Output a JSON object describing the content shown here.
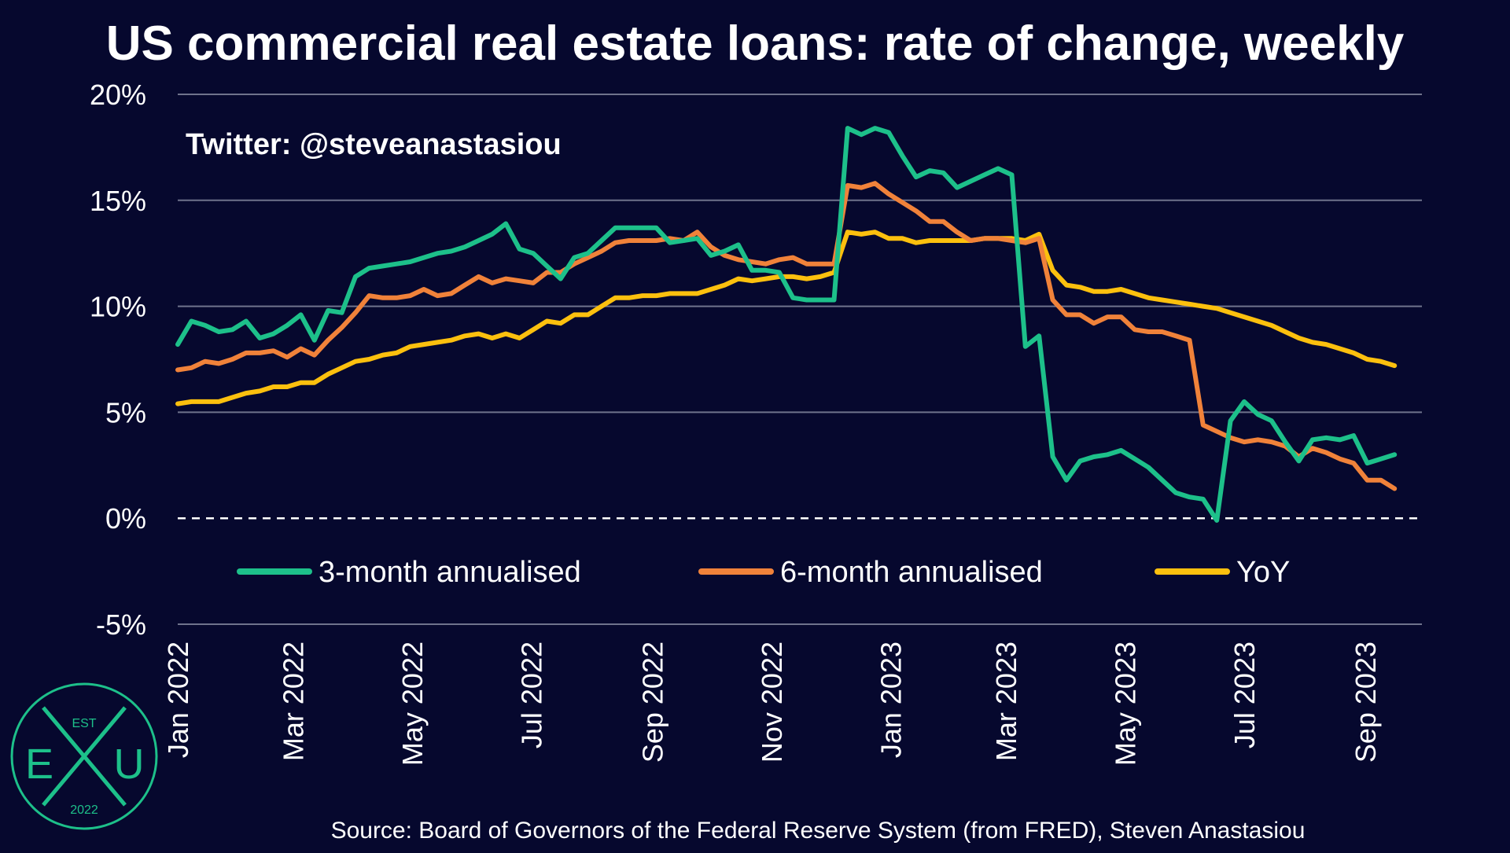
{
  "chart_data": {
    "type": "line",
    "title": "US commercial real estate loans: rate of change, weekly",
    "annotation": "Twitter: @steveanastasiou",
    "source": "Source: Board of Governors of the Federal Reserve System (from FRED), Steven Anastasiou",
    "xlabel": "",
    "ylabel": "",
    "ylim": [
      -5,
      20
    ],
    "y_ticks": [
      -5,
      0,
      5,
      10,
      15,
      20
    ],
    "y_tick_labels": [
      "-5%",
      "0%",
      "5%",
      "10%",
      "15%",
      "20%"
    ],
    "x_range": [
      "2022-01-01",
      "2023-09-30"
    ],
    "x_ticks": [
      "2022-01-01",
      "2022-03-01",
      "2022-05-01",
      "2022-07-01",
      "2022-09-01",
      "2022-11-01",
      "2023-01-01",
      "2023-03-01",
      "2023-05-01",
      "2023-07-01",
      "2023-09-01"
    ],
    "x_tick_labels": [
      "Jan 2022",
      "Mar 2022",
      "May 2022",
      "Jul 2022",
      "Sep 2022",
      "Nov 2022",
      "Jan 2023",
      "Mar 2023",
      "May 2023",
      "Jul 2023",
      "Sep 2023"
    ],
    "grid": true,
    "zero_line": "dashed",
    "legend_position": "middle",
    "colors": {
      "background": "#06082e",
      "grid": "#6f738c",
      "3m": "#1dc08a",
      "6m": "#f0823a",
      "yoy": "#fcc00e"
    },
    "series": [
      {
        "name": "3-month annualised",
        "color": "#1dc08a",
        "points": [
          [
            "2022-01-01",
            8.2
          ],
          [
            "2022-01-08",
            9.3
          ],
          [
            "2022-01-15",
            9.1
          ],
          [
            "2022-01-22",
            8.8
          ],
          [
            "2022-01-29",
            8.9
          ],
          [
            "2022-02-05",
            9.3
          ],
          [
            "2022-02-12",
            8.5
          ],
          [
            "2022-02-19",
            8.7
          ],
          [
            "2022-02-26",
            9.1
          ],
          [
            "2022-03-05",
            9.6
          ],
          [
            "2022-03-12",
            8.4
          ],
          [
            "2022-03-19",
            9.8
          ],
          [
            "2022-03-26",
            9.7
          ],
          [
            "2022-04-02",
            11.4
          ],
          [
            "2022-04-09",
            11.8
          ],
          [
            "2022-04-16",
            11.9
          ],
          [
            "2022-04-23",
            12.0
          ],
          [
            "2022-04-30",
            12.1
          ],
          [
            "2022-05-07",
            12.3
          ],
          [
            "2022-05-14",
            12.5
          ],
          [
            "2022-05-21",
            12.6
          ],
          [
            "2022-05-28",
            12.8
          ],
          [
            "2022-06-04",
            13.1
          ],
          [
            "2022-06-11",
            13.4
          ],
          [
            "2022-06-18",
            13.9
          ],
          [
            "2022-06-25",
            12.7
          ],
          [
            "2022-07-02",
            12.5
          ],
          [
            "2022-07-09",
            11.9
          ],
          [
            "2022-07-16",
            11.3
          ],
          [
            "2022-07-23",
            12.3
          ],
          [
            "2022-07-30",
            12.5
          ],
          [
            "2022-08-06",
            13.1
          ],
          [
            "2022-08-13",
            13.7
          ],
          [
            "2022-08-20",
            13.7
          ],
          [
            "2022-08-27",
            13.7
          ],
          [
            "2022-09-03",
            13.7
          ],
          [
            "2022-09-10",
            13.0
          ],
          [
            "2022-09-17",
            13.1
          ],
          [
            "2022-09-24",
            13.2
          ],
          [
            "2022-10-01",
            12.4
          ],
          [
            "2022-10-08",
            12.6
          ],
          [
            "2022-10-15",
            12.9
          ],
          [
            "2022-10-22",
            11.7
          ],
          [
            "2022-10-29",
            11.7
          ],
          [
            "2022-11-05",
            11.6
          ],
          [
            "2022-11-12",
            10.4
          ],
          [
            "2022-11-19",
            10.3
          ],
          [
            "2022-11-26",
            10.3
          ],
          [
            "2022-12-03",
            10.3
          ],
          [
            "2022-12-10",
            18.4
          ],
          [
            "2022-12-17",
            18.1
          ],
          [
            "2022-12-24",
            18.4
          ],
          [
            "2022-12-31",
            18.2
          ],
          [
            "2023-01-07",
            17.1
          ],
          [
            "2023-01-14",
            16.1
          ],
          [
            "2023-01-21",
            16.4
          ],
          [
            "2023-01-28",
            16.3
          ],
          [
            "2023-02-04",
            15.6
          ],
          [
            "2023-02-11",
            15.9
          ],
          [
            "2023-02-18",
            16.2
          ],
          [
            "2023-02-25",
            16.5
          ],
          [
            "2023-03-04",
            16.2
          ],
          [
            "2023-03-11",
            8.1
          ],
          [
            "2023-03-18",
            8.6
          ],
          [
            "2023-03-25",
            2.9
          ],
          [
            "2023-04-01",
            1.8
          ],
          [
            "2023-04-08",
            2.7
          ],
          [
            "2023-04-15",
            2.9
          ],
          [
            "2023-04-22",
            3.0
          ],
          [
            "2023-04-29",
            3.2
          ],
          [
            "2023-05-06",
            2.8
          ],
          [
            "2023-05-13",
            2.4
          ],
          [
            "2023-05-20",
            1.8
          ],
          [
            "2023-05-27",
            1.2
          ],
          [
            "2023-06-03",
            1.0
          ],
          [
            "2023-06-10",
            0.9
          ],
          [
            "2023-06-17",
            -0.1
          ],
          [
            "2023-06-24",
            4.6
          ],
          [
            "2023-07-01",
            5.5
          ],
          [
            "2023-07-08",
            4.9
          ],
          [
            "2023-07-15",
            4.6
          ],
          [
            "2023-07-22",
            3.6
          ],
          [
            "2023-07-29",
            2.7
          ],
          [
            "2023-08-05",
            3.7
          ],
          [
            "2023-08-12",
            3.8
          ],
          [
            "2023-08-19",
            3.7
          ],
          [
            "2023-08-26",
            3.9
          ],
          [
            "2023-09-02",
            2.6
          ],
          [
            "2023-09-09",
            2.8
          ],
          [
            "2023-09-16",
            3.0
          ]
        ]
      },
      {
        "name": "6-month annualised",
        "color": "#f0823a",
        "points": [
          [
            "2022-01-01",
            7.0
          ],
          [
            "2022-01-08",
            7.1
          ],
          [
            "2022-01-15",
            7.4
          ],
          [
            "2022-01-22",
            7.3
          ],
          [
            "2022-01-29",
            7.5
          ],
          [
            "2022-02-05",
            7.8
          ],
          [
            "2022-02-12",
            7.8
          ],
          [
            "2022-02-19",
            7.9
          ],
          [
            "2022-02-26",
            7.6
          ],
          [
            "2022-03-05",
            8.0
          ],
          [
            "2022-03-12",
            7.7
          ],
          [
            "2022-03-19",
            8.4
          ],
          [
            "2022-03-26",
            9.0
          ],
          [
            "2022-04-02",
            9.7
          ],
          [
            "2022-04-09",
            10.5
          ],
          [
            "2022-04-16",
            10.4
          ],
          [
            "2022-04-23",
            10.4
          ],
          [
            "2022-04-30",
            10.5
          ],
          [
            "2022-05-07",
            10.8
          ],
          [
            "2022-05-14",
            10.5
          ],
          [
            "2022-05-21",
            10.6
          ],
          [
            "2022-05-28",
            11.0
          ],
          [
            "2022-06-04",
            11.4
          ],
          [
            "2022-06-11",
            11.1
          ],
          [
            "2022-06-18",
            11.3
          ],
          [
            "2022-06-25",
            11.2
          ],
          [
            "2022-07-02",
            11.1
          ],
          [
            "2022-07-09",
            11.6
          ],
          [
            "2022-07-16",
            11.6
          ],
          [
            "2022-07-23",
            12.0
          ],
          [
            "2022-07-30",
            12.3
          ],
          [
            "2022-08-06",
            12.6
          ],
          [
            "2022-08-13",
            13.0
          ],
          [
            "2022-08-20",
            13.1
          ],
          [
            "2022-08-27",
            13.1
          ],
          [
            "2022-09-03",
            13.1
          ],
          [
            "2022-09-10",
            13.2
          ],
          [
            "2022-09-17",
            13.1
          ],
          [
            "2022-09-24",
            13.5
          ],
          [
            "2022-10-01",
            12.8
          ],
          [
            "2022-10-08",
            12.4
          ],
          [
            "2022-10-15",
            12.2
          ],
          [
            "2022-10-22",
            12.1
          ],
          [
            "2022-10-29",
            12.0
          ],
          [
            "2022-11-05",
            12.2
          ],
          [
            "2022-11-12",
            12.3
          ],
          [
            "2022-11-19",
            12.0
          ],
          [
            "2022-11-26",
            12.0
          ],
          [
            "2022-12-03",
            12.0
          ],
          [
            "2022-12-10",
            15.7
          ],
          [
            "2022-12-17",
            15.6
          ],
          [
            "2022-12-24",
            15.8
          ],
          [
            "2022-12-31",
            15.3
          ],
          [
            "2023-01-07",
            14.9
          ],
          [
            "2023-01-14",
            14.5
          ],
          [
            "2023-01-21",
            14.0
          ],
          [
            "2023-01-28",
            14.0
          ],
          [
            "2023-02-04",
            13.5
          ],
          [
            "2023-02-11",
            13.1
          ],
          [
            "2023-02-18",
            13.2
          ],
          [
            "2023-02-25",
            13.2
          ],
          [
            "2023-03-04",
            13.1
          ],
          [
            "2023-03-11",
            13.0
          ],
          [
            "2023-03-18",
            13.2
          ],
          [
            "2023-03-25",
            10.3
          ],
          [
            "2023-04-01",
            9.6
          ],
          [
            "2023-04-08",
            9.6
          ],
          [
            "2023-04-15",
            9.2
          ],
          [
            "2023-04-22",
            9.5
          ],
          [
            "2023-04-29",
            9.5
          ],
          [
            "2023-05-06",
            8.9
          ],
          [
            "2023-05-13",
            8.8
          ],
          [
            "2023-05-20",
            8.8
          ],
          [
            "2023-05-27",
            8.6
          ],
          [
            "2023-06-03",
            8.4
          ],
          [
            "2023-06-10",
            4.4
          ],
          [
            "2023-06-17",
            4.1
          ],
          [
            "2023-06-24",
            3.8
          ],
          [
            "2023-07-01",
            3.6
          ],
          [
            "2023-07-08",
            3.7
          ],
          [
            "2023-07-15",
            3.6
          ],
          [
            "2023-07-22",
            3.4
          ],
          [
            "2023-07-29",
            2.9
          ],
          [
            "2023-08-05",
            3.3
          ],
          [
            "2023-08-12",
            3.1
          ],
          [
            "2023-08-19",
            2.8
          ],
          [
            "2023-08-26",
            2.6
          ],
          [
            "2023-09-02",
            1.8
          ],
          [
            "2023-09-09",
            1.8
          ],
          [
            "2023-09-16",
            1.4
          ]
        ]
      },
      {
        "name": "YoY",
        "color": "#fcc00e",
        "points": [
          [
            "2022-01-01",
            5.4
          ],
          [
            "2022-01-08",
            5.5
          ],
          [
            "2022-01-15",
            5.5
          ],
          [
            "2022-01-22",
            5.5
          ],
          [
            "2022-01-29",
            5.7
          ],
          [
            "2022-02-05",
            5.9
          ],
          [
            "2022-02-12",
            6.0
          ],
          [
            "2022-02-19",
            6.2
          ],
          [
            "2022-02-26",
            6.2
          ],
          [
            "2022-03-05",
            6.4
          ],
          [
            "2022-03-12",
            6.4
          ],
          [
            "2022-03-19",
            6.8
          ],
          [
            "2022-03-26",
            7.1
          ],
          [
            "2022-04-02",
            7.4
          ],
          [
            "2022-04-09",
            7.5
          ],
          [
            "2022-04-16",
            7.7
          ],
          [
            "2022-04-23",
            7.8
          ],
          [
            "2022-04-30",
            8.1
          ],
          [
            "2022-05-07",
            8.2
          ],
          [
            "2022-05-14",
            8.3
          ],
          [
            "2022-05-21",
            8.4
          ],
          [
            "2022-05-28",
            8.6
          ],
          [
            "2022-06-04",
            8.7
          ],
          [
            "2022-06-11",
            8.5
          ],
          [
            "2022-06-18",
            8.7
          ],
          [
            "2022-06-25",
            8.5
          ],
          [
            "2022-07-02",
            8.9
          ],
          [
            "2022-07-09",
            9.3
          ],
          [
            "2022-07-16",
            9.2
          ],
          [
            "2022-07-23",
            9.6
          ],
          [
            "2022-07-30",
            9.6
          ],
          [
            "2022-08-06",
            10.0
          ],
          [
            "2022-08-13",
            10.4
          ],
          [
            "2022-08-20",
            10.4
          ],
          [
            "2022-08-27",
            10.5
          ],
          [
            "2022-09-03",
            10.5
          ],
          [
            "2022-09-10",
            10.6
          ],
          [
            "2022-09-17",
            10.6
          ],
          [
            "2022-09-24",
            10.6
          ],
          [
            "2022-10-01",
            10.8
          ],
          [
            "2022-10-08",
            11.0
          ],
          [
            "2022-10-15",
            11.3
          ],
          [
            "2022-10-22",
            11.2
          ],
          [
            "2022-10-29",
            11.3
          ],
          [
            "2022-11-05",
            11.4
          ],
          [
            "2022-11-12",
            11.4
          ],
          [
            "2022-11-19",
            11.3
          ],
          [
            "2022-11-26",
            11.4
          ],
          [
            "2022-12-03",
            11.6
          ],
          [
            "2022-12-10",
            13.5
          ],
          [
            "2022-12-17",
            13.4
          ],
          [
            "2022-12-24",
            13.5
          ],
          [
            "2022-12-31",
            13.2
          ],
          [
            "2023-01-07",
            13.2
          ],
          [
            "2023-01-14",
            13.0
          ],
          [
            "2023-01-21",
            13.1
          ],
          [
            "2023-01-28",
            13.1
          ],
          [
            "2023-02-04",
            13.1
          ],
          [
            "2023-02-11",
            13.1
          ],
          [
            "2023-02-18",
            13.2
          ],
          [
            "2023-02-25",
            13.2
          ],
          [
            "2023-03-04",
            13.2
          ],
          [
            "2023-03-11",
            13.1
          ],
          [
            "2023-03-18",
            13.4
          ],
          [
            "2023-03-25",
            11.7
          ],
          [
            "2023-04-01",
            11.0
          ],
          [
            "2023-04-08",
            10.9
          ],
          [
            "2023-04-15",
            10.7
          ],
          [
            "2023-04-22",
            10.7
          ],
          [
            "2023-04-29",
            10.8
          ],
          [
            "2023-05-06",
            10.6
          ],
          [
            "2023-05-13",
            10.4
          ],
          [
            "2023-05-20",
            10.3
          ],
          [
            "2023-05-27",
            10.2
          ],
          [
            "2023-06-03",
            10.1
          ],
          [
            "2023-06-10",
            10.0
          ],
          [
            "2023-06-17",
            9.9
          ],
          [
            "2023-06-24",
            9.7
          ],
          [
            "2023-07-01",
            9.5
          ],
          [
            "2023-07-08",
            9.3
          ],
          [
            "2023-07-15",
            9.1
          ],
          [
            "2023-07-22",
            8.8
          ],
          [
            "2023-07-29",
            8.5
          ],
          [
            "2023-08-05",
            8.3
          ],
          [
            "2023-08-12",
            8.2
          ],
          [
            "2023-08-19",
            8.0
          ],
          [
            "2023-08-26",
            7.8
          ],
          [
            "2023-09-02",
            7.5
          ],
          [
            "2023-09-09",
            7.4
          ],
          [
            "2023-09-16",
            7.2
          ]
        ]
      }
    ]
  },
  "logo": {
    "top_text": "EST",
    "left_letter": "E",
    "right_letter": "U",
    "bottom_text": "2022"
  }
}
